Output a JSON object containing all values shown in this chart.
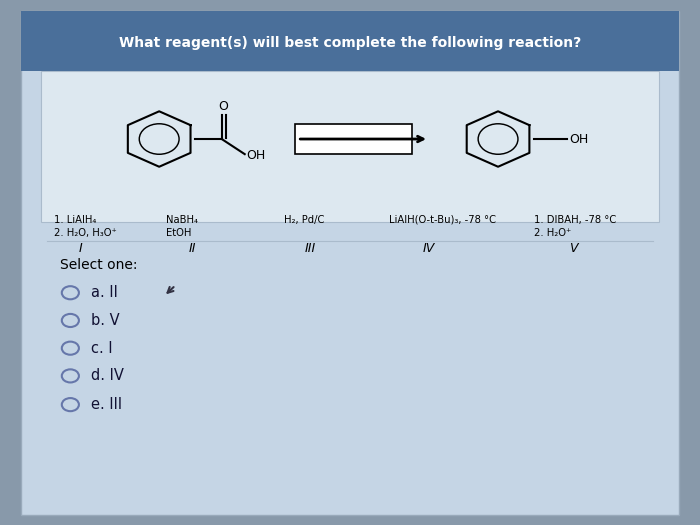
{
  "title": "What reagent(s) will best complete the following reaction?",
  "outer_bg": "#8899aa",
  "card_bg": "#c5d5e5",
  "header_bg": "#4a6f9a",
  "reaction_bg": "#dde8f0",
  "reagents": [
    {
      "line1": "1. LiAlH₄",
      "line2": "2. H₂O, H₃O⁺",
      "roman": "I"
    },
    {
      "line1": "NaBH₄",
      "line2": "EtOH",
      "roman": "II"
    },
    {
      "line1": "H₂, Pd/C",
      "line2": "",
      "roman": "III"
    },
    {
      "line1": "LiAlH(O-t-Bu)₃, -78 °C",
      "line2": "",
      "roman": "IV"
    },
    {
      "line1": "1. DIBAH, -78 °C",
      "line2": "2. H₂O⁺",
      "roman": "V"
    }
  ],
  "select_label": "Select one:",
  "options": [
    "a. II",
    "b. V",
    "c. I",
    "d. IV",
    "e. III"
  ],
  "reactant_oh": "OH",
  "product_oh": "OH",
  "carbonyl_o": "O"
}
